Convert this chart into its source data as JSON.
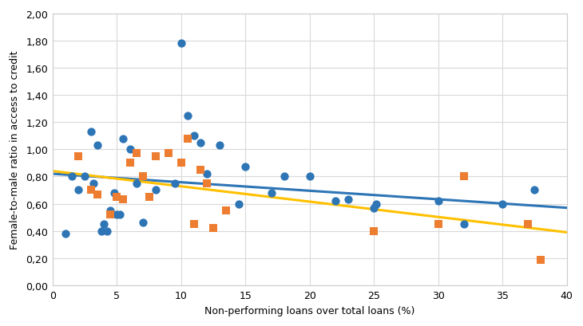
{
  "blue_x": [
    1.0,
    1.5,
    2.0,
    2.5,
    3.0,
    3.2,
    3.5,
    3.8,
    4.0,
    4.2,
    4.5,
    4.8,
    5.0,
    5.2,
    5.5,
    6.0,
    6.5,
    7.0,
    8.0,
    9.5,
    10.0,
    10.5,
    11.0,
    11.5,
    12.0,
    13.0,
    14.5,
    15.0,
    17.0,
    18.0,
    20.0,
    22.0,
    23.0,
    25.0,
    25.2,
    30.0,
    32.0,
    35.0,
    37.5
  ],
  "blue_y": [
    0.38,
    0.8,
    0.7,
    0.8,
    1.13,
    0.75,
    1.03,
    0.4,
    0.45,
    0.4,
    0.55,
    0.68,
    0.52,
    0.52,
    1.08,
    1.0,
    0.75,
    0.46,
    0.7,
    0.75,
    1.78,
    1.25,
    1.1,
    1.05,
    0.82,
    1.03,
    0.6,
    0.87,
    0.68,
    0.8,
    0.8,
    0.62,
    0.63,
    0.57,
    0.6,
    0.62,
    0.45,
    0.6,
    0.7
  ],
  "orange_x": [
    2.0,
    3.0,
    3.5,
    4.5,
    5.0,
    5.5,
    6.0,
    6.5,
    7.0,
    7.5,
    8.0,
    9.0,
    10.0,
    10.5,
    11.0,
    11.5,
    12.0,
    12.5,
    13.5,
    25.0,
    30.0,
    32.0,
    37.0,
    38.0
  ],
  "orange_y": [
    0.95,
    0.7,
    0.67,
    0.52,
    0.65,
    0.63,
    0.9,
    0.97,
    0.8,
    0.65,
    0.95,
    0.97,
    0.9,
    1.08,
    0.45,
    0.85,
    0.75,
    0.42,
    0.55,
    0.4,
    0.45,
    0.8,
    0.45,
    0.19
  ],
  "blue_line_x": [
    0,
    40
  ],
  "blue_line_y": [
    0.82,
    0.57
  ],
  "orange_line_x": [
    0,
    40
  ],
  "orange_line_y": [
    0.84,
    0.39
  ],
  "xlabel": "Non-performing loans over total loans (%)",
  "ylabel": "Female-to-male ratio in access to credit",
  "xlim": [
    0,
    40
  ],
  "ylim": [
    0.0,
    2.0
  ],
  "xticks": [
    0,
    5,
    10,
    15,
    20,
    25,
    30,
    35,
    40
  ],
  "yticks": [
    0.0,
    0.2,
    0.4,
    0.6,
    0.8,
    1.0,
    1.2,
    1.4,
    1.6,
    1.8,
    2.0
  ],
  "ytick_labels": [
    "0,00",
    "0,20",
    "0,40",
    "0,60",
    "0,80",
    "1,00",
    "1,20",
    "1,40",
    "1,60",
    "1,80",
    "2,00"
  ],
  "xtick_labels": [
    "0",
    "5",
    "10",
    "15",
    "20",
    "25",
    "30",
    "35",
    "40"
  ],
  "blue_color": "#2E75B6",
  "orange_color": "#ED7D31",
  "yellow_color": "#FFC000",
  "background_color": "#FFFFFF",
  "grid_color": "#D9D9D9",
  "marker_size_blue": 55,
  "marker_size_orange": 50,
  "line_width": 2.2
}
